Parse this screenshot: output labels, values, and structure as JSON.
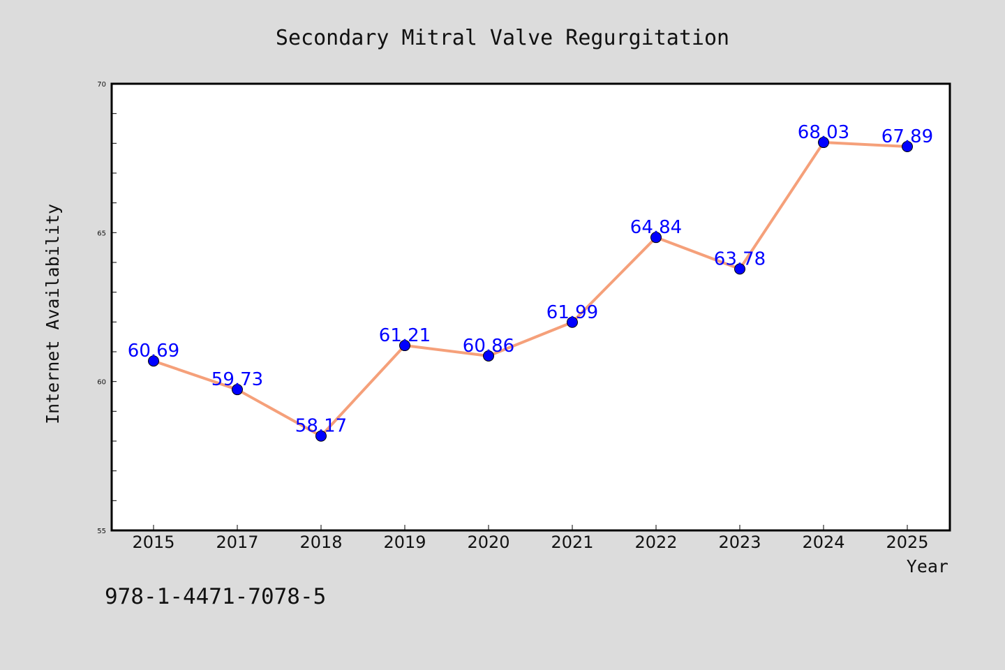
{
  "chart_data": {
    "type": "line",
    "title": "Secondary Mitral Valve Regurgitation",
    "xlabel": "Year",
    "ylabel": "Internet Availability",
    "categories": [
      "2015",
      "2017",
      "2018",
      "2019",
      "2020",
      "2021",
      "2022",
      "2023",
      "2024",
      "2025"
    ],
    "values": [
      60.69,
      59.73,
      58.17,
      61.21,
      60.86,
      61.99,
      64.84,
      63.78,
      68.03,
      67.89
    ],
    "data_labels": [
      "60.69",
      "59.73",
      "58.17",
      "61.21",
      "60.86",
      "61.99",
      "64.84",
      "63.78",
      "68.03",
      "67.89"
    ],
    "ylim": [
      55,
      70
    ],
    "yticks": [
      "55",
      "60",
      "65",
      "70"
    ],
    "grid": false,
    "colors": {
      "line": "#f5a07a",
      "marker": "#0000ff",
      "label": "#0000ff",
      "background": "#dcdcdc",
      "plot_area": "#ffffff"
    }
  },
  "footer": {
    "isbn": "978-1-4471-7078-5"
  }
}
